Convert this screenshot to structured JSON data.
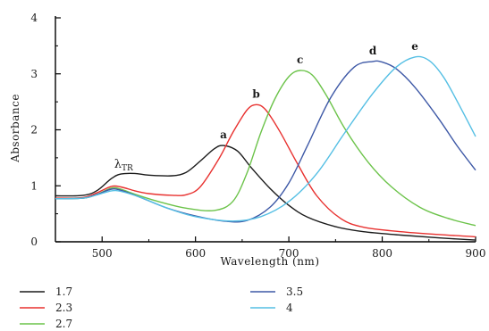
{
  "chart_data": {
    "type": "line",
    "xlabel": "Wavelength (nm)",
    "ylabel": "Absorbance",
    "xlim": [
      450,
      900
    ],
    "ylim": [
      0,
      4
    ],
    "xticks": [
      500,
      600,
      700,
      800,
      900
    ],
    "yticks": [
      0,
      1,
      2,
      3,
      4
    ],
    "grid": false,
    "legend_position": "bottom",
    "annotations": [
      {
        "text": "λ",
        "sub": "TR",
        "x": 523,
        "y": 1.32
      }
    ],
    "series": [
      {
        "name": "1.7",
        "peak_label": "a",
        "color": "#1a1a1a",
        "x": [
          450,
          480,
          495,
          510,
          520,
          535,
          550,
          575,
          590,
          605,
          620,
          630,
          645,
          660,
          680,
          700,
          720,
          750,
          780,
          820,
          860,
          900
        ],
        "y": [
          0.82,
          0.83,
          0.92,
          1.13,
          1.21,
          1.22,
          1.19,
          1.18,
          1.24,
          1.44,
          1.66,
          1.72,
          1.62,
          1.32,
          0.95,
          0.65,
          0.44,
          0.27,
          0.18,
          0.12,
          0.07,
          0.03
        ]
      },
      {
        "name": "2.3",
        "peak_label": "b",
        "color": "#e8312f",
        "x": [
          450,
          480,
          495,
          510,
          520,
          535,
          550,
          575,
          590,
          605,
          625,
          640,
          655,
          665,
          675,
          690,
          710,
          730,
          755,
          780,
          820,
          860,
          900
        ],
        "y": [
          0.78,
          0.79,
          0.88,
          0.99,
          0.98,
          0.91,
          0.86,
          0.83,
          0.84,
          0.98,
          1.48,
          1.95,
          2.35,
          2.45,
          2.36,
          1.98,
          1.37,
          0.82,
          0.42,
          0.26,
          0.18,
          0.13,
          0.09
        ]
      },
      {
        "name": "2.7",
        "peak_label": "c",
        "color": "#6cc34a",
        "x": [
          450,
          480,
          495,
          510,
          520,
          535,
          560,
          590,
          620,
          640,
          655,
          670,
          685,
          700,
          712,
          725,
          740,
          760,
          785,
          810,
          840,
          870,
          900
        ],
        "y": [
          0.77,
          0.78,
          0.85,
          0.96,
          0.94,
          0.85,
          0.72,
          0.6,
          0.56,
          0.72,
          1.22,
          1.95,
          2.55,
          2.95,
          3.06,
          2.98,
          2.62,
          2.02,
          1.42,
          0.98,
          0.62,
          0.42,
          0.29
        ]
      },
      {
        "name": "3.5",
        "peak_label": "d",
        "color": "#3d58a6",
        "x": [
          450,
          480,
          495,
          510,
          520,
          540,
          570,
          600,
          630,
          655,
          680,
          700,
          720,
          745,
          770,
          790,
          800,
          815,
          835,
          860,
          880,
          900
        ],
        "y": [
          0.77,
          0.78,
          0.85,
          0.94,
          0.92,
          0.8,
          0.6,
          0.46,
          0.37,
          0.38,
          0.62,
          1.05,
          1.72,
          2.58,
          3.12,
          3.22,
          3.21,
          3.09,
          2.76,
          2.21,
          1.72,
          1.28
        ]
      },
      {
        "name": "4",
        "peak_label": "e",
        "color": "#55bfe4",
        "x": [
          450,
          480,
          495,
          510,
          520,
          540,
          570,
          600,
          640,
          670,
          700,
          730,
          760,
          790,
          815,
          835,
          850,
          865,
          880,
          900
        ],
        "y": [
          0.77,
          0.78,
          0.84,
          0.91,
          0.9,
          0.8,
          0.6,
          0.45,
          0.37,
          0.45,
          0.72,
          1.22,
          1.95,
          2.65,
          3.12,
          3.3,
          3.24,
          2.96,
          2.52,
          1.88
        ]
      }
    ]
  }
}
